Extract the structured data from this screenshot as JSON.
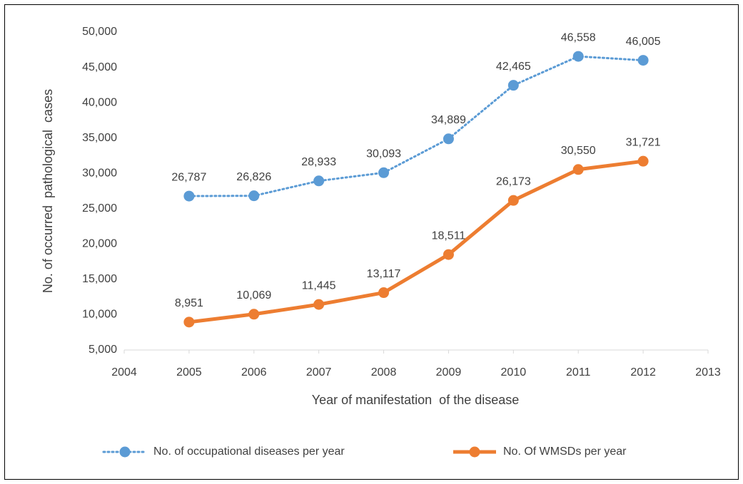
{
  "chart_data": {
    "type": "line",
    "x_label": "Year of manifestation  of the disease",
    "y_label": "No. of occurred  pathological  cases",
    "x": [
      2005,
      2006,
      2007,
      2008,
      2009,
      2010,
      2011,
      2012
    ],
    "xlim": [
      2004,
      2013
    ],
    "xticks": [
      2004,
      2005,
      2006,
      2007,
      2008,
      2009,
      2010,
      2011,
      2012,
      2013
    ],
    "ylim": [
      5000,
      50000
    ],
    "yticks": [
      {
        "value": 5000,
        "label": "5,000"
      },
      {
        "value": 10000,
        "label": "10,000"
      },
      {
        "value": 15000,
        "label": "15,000"
      },
      {
        "value": 20000,
        "label": "20,000"
      },
      {
        "value": 25000,
        "label": "25,000"
      },
      {
        "value": 30000,
        "label": "30,000"
      },
      {
        "value": 35000,
        "label": "35,000"
      },
      {
        "value": 40000,
        "label": "40,000"
      },
      {
        "value": 45000,
        "label": "45,000"
      },
      {
        "value": 50000,
        "label": "50,000"
      }
    ],
    "grid": false,
    "legend": "bottom",
    "series": [
      {
        "name": "No. of occupational diseases per year",
        "color": "#5b9bd5",
        "style": "dotted",
        "values": [
          26787,
          26826,
          28933,
          30093,
          34889,
          42465,
          46558,
          46005
        ],
        "value_labels": [
          "26,787",
          "26,826",
          "28,933",
          "30,093",
          "34,889",
          "42,465",
          "46,558",
          "46,005"
        ]
      },
      {
        "name": "No. Of WMSDs per year",
        "color": "#ed7d31",
        "style": "solid",
        "values": [
          8951,
          10069,
          11445,
          13117,
          18511,
          26173,
          30550,
          31721
        ],
        "value_labels": [
          "8,951",
          "10,069",
          "11,445",
          "13,117",
          "18,511",
          "26,173",
          "30,550",
          "31,721"
        ]
      }
    ]
  }
}
